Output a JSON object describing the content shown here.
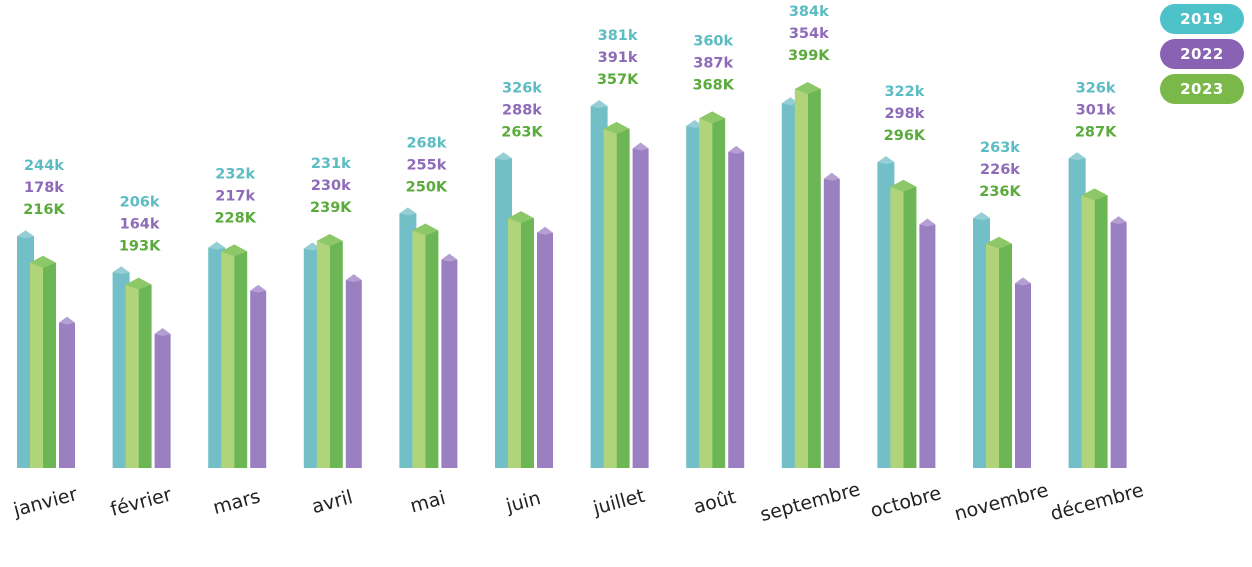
{
  "chart_data": {
    "type": "bar",
    "categories": [
      "janvier",
      "février",
      "mars",
      "avril",
      "mai",
      "juin",
      "juillet",
      "août",
      "septembre",
      "octobre",
      "novembre",
      "décembre"
    ],
    "series": [
      {
        "name": "2019",
        "color": "#72bfc7",
        "values": [
          244,
          206,
          232,
          231,
          268,
          326,
          381,
          360,
          384,
          322,
          263,
          326
        ],
        "labels": [
          "244k",
          "206k",
          "232k",
          "231k",
          "268k",
          "326k",
          "381k",
          "360k",
          "384k",
          "322k",
          "263k",
          "326k"
        ]
      },
      {
        "name": "2022",
        "color": "#9a7fc1",
        "values": [
          178,
          164,
          217,
          230,
          255,
          288,
          391,
          387,
          354,
          298,
          226,
          301
        ],
        "labels": [
          "178k",
          "164k",
          "217k",
          "230k",
          "255k",
          "288k",
          "391k",
          "387k",
          "354k",
          "298k",
          "226k",
          "301k"
        ]
      },
      {
        "name": "2023",
        "color": "#86c35e",
        "values": [
          216,
          193,
          228,
          239,
          250,
          263,
          357,
          368,
          399,
          296,
          236,
          287
        ],
        "labels": [
          "216K",
          "193K",
          "228K",
          "239K",
          "250K",
          "263K",
          "357K",
          "368K",
          "399K",
          "296K",
          "236K",
          "287K"
        ]
      }
    ],
    "legend_position": "top-right",
    "label_colors": {
      "2019": "#5bbcc3",
      "2022": "#8e6bb8",
      "2023": "#5aab3c"
    },
    "ylim": [
      0,
      420
    ],
    "grid": false
  }
}
